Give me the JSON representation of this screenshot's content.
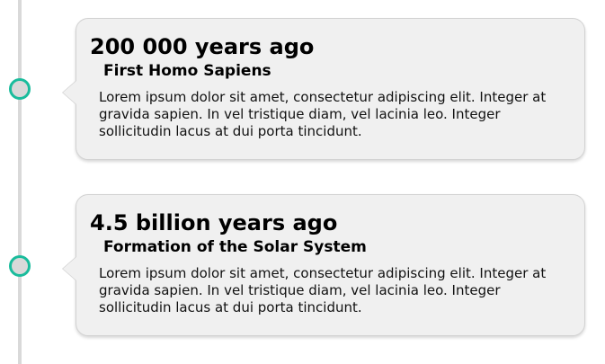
{
  "accent_color": "#1abc9c",
  "events": [
    {
      "date": "200 000 years ago",
      "title": "First Homo Sapiens",
      "description": "Lorem ipsum dolor sit amet, consectetur adipiscing elit. Integer at gravida sapien. In vel tristique diam, vel lacinia leo. Integer sollicitudin lacus at dui porta tincidunt."
    },
    {
      "date": "4.5 billion years ago",
      "title": "Formation of the Solar System",
      "description": "Lorem ipsum dolor sit amet, consectetur adipiscing elit. Integer at gravida sapien. In vel tristique diam, vel lacinia leo. Integer sollicitudin lacus at dui porta tincidunt."
    }
  ]
}
